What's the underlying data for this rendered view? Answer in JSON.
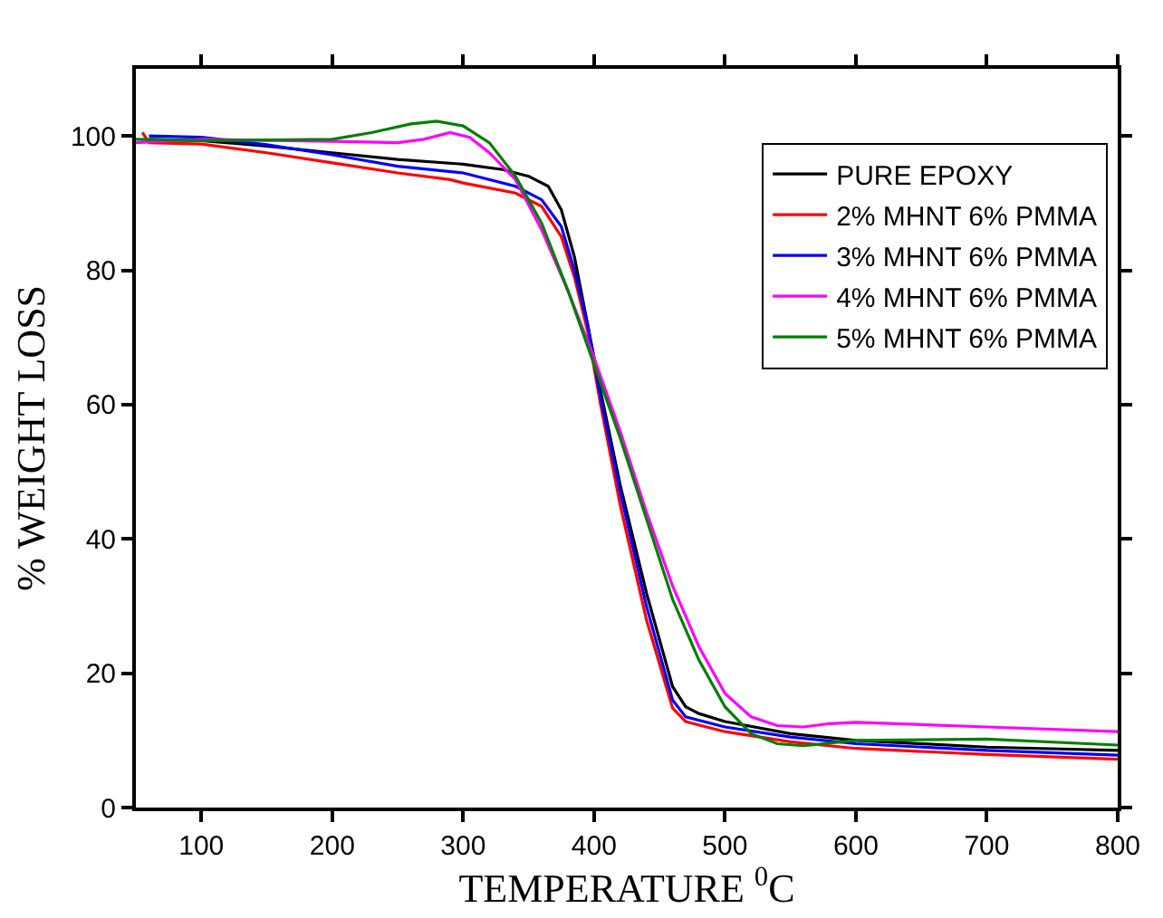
{
  "chart_data": {
    "type": "line",
    "xlabel": "TEMPERATURE $^{0}$C",
    "ylabel": "% WEIGHT LOSS",
    "xlim": [
      50,
      800
    ],
    "xticks": [
      100,
      200,
      300,
      400,
      500,
      600,
      700,
      800
    ],
    "ylim": [
      0,
      110
    ],
    "yticks": [
      0,
      20,
      40,
      60,
      80,
      100
    ],
    "legend": "top right",
    "marker": "none",
    "line_style": "solid",
    "series": [
      {
        "name": "PURE EPOXY",
        "color": "#000000",
        "x": [
          60,
          100,
          150,
          200,
          250,
          300,
          330,
          350,
          365,
          375,
          385,
          395,
          405,
          420,
          440,
          460,
          470,
          480,
          500,
          550,
          600,
          700,
          800
        ],
        "values": [
          99.5,
          99.3,
          98.5,
          97.5,
          96.5,
          95.8,
          95,
          94,
          92.5,
          89,
          82,
          72,
          62,
          48,
          32,
          18,
          15,
          14,
          12.8,
          11,
          10,
          9,
          8.5
        ]
      },
      {
        "name": "2% MHNT 6% PMMA",
        "color": "#ff0000",
        "x": [
          55,
          60,
          100,
          150,
          200,
          250,
          290,
          300,
          340,
          360,
          375,
          385,
          395,
          405,
          420,
          440,
          460,
          470,
          500,
          550,
          600,
          700,
          800
        ],
        "values": [
          100.5,
          99,
          98.8,
          97.5,
          96,
          94.5,
          93.5,
          93,
          91.5,
          89.5,
          85,
          79,
          71,
          60,
          45,
          28,
          14.8,
          12.8,
          11.3,
          9.8,
          8.8,
          7.9,
          7.2
        ]
      },
      {
        "name": "3% MHNT 6% PMMA",
        "color": "#0000ff",
        "x": [
          60,
          100,
          150,
          200,
          250,
          300,
          340,
          360,
          375,
          385,
          395,
          405,
          420,
          440,
          460,
          470,
          500,
          550,
          600,
          700,
          800
        ],
        "values": [
          100,
          99.8,
          98.7,
          97.2,
          95.5,
          94.5,
          92.5,
          90.5,
          86.5,
          80,
          72,
          61,
          47,
          30,
          16,
          13.5,
          12,
          10.5,
          9.5,
          8.5,
          7.8
        ]
      },
      {
        "name": "4% MHNT 6% PMMA",
        "color": "#ff00ff",
        "x": [
          50,
          100,
          200,
          250,
          270,
          290,
          305,
          320,
          340,
          360,
          380,
          400,
          420,
          440,
          460,
          480,
          500,
          520,
          540,
          560,
          580,
          600,
          700,
          800
        ],
        "values": [
          99,
          99.5,
          99.2,
          99,
          99.5,
          100.5,
          99.8,
          97.5,
          93.5,
          86,
          77,
          67,
          56,
          44,
          33,
          24,
          17,
          13.5,
          12.2,
          12,
          12.5,
          12.7,
          12,
          11.3
        ]
      },
      {
        "name": "5% MHNT 6% PMMA",
        "color": "#008000",
        "x": [
          50,
          100,
          200,
          230,
          260,
          280,
          300,
          320,
          340,
          360,
          380,
          400,
          420,
          440,
          460,
          480,
          500,
          520,
          540,
          560,
          600,
          700,
          800
        ],
        "values": [
          99.5,
          99.3,
          99.5,
          100.5,
          101.8,
          102.2,
          101.5,
          99,
          94,
          87,
          77,
          66,
          55,
          43,
          31,
          22,
          15,
          11,
          9.5,
          9.2,
          10,
          10.2,
          9.3
        ]
      }
    ]
  }
}
